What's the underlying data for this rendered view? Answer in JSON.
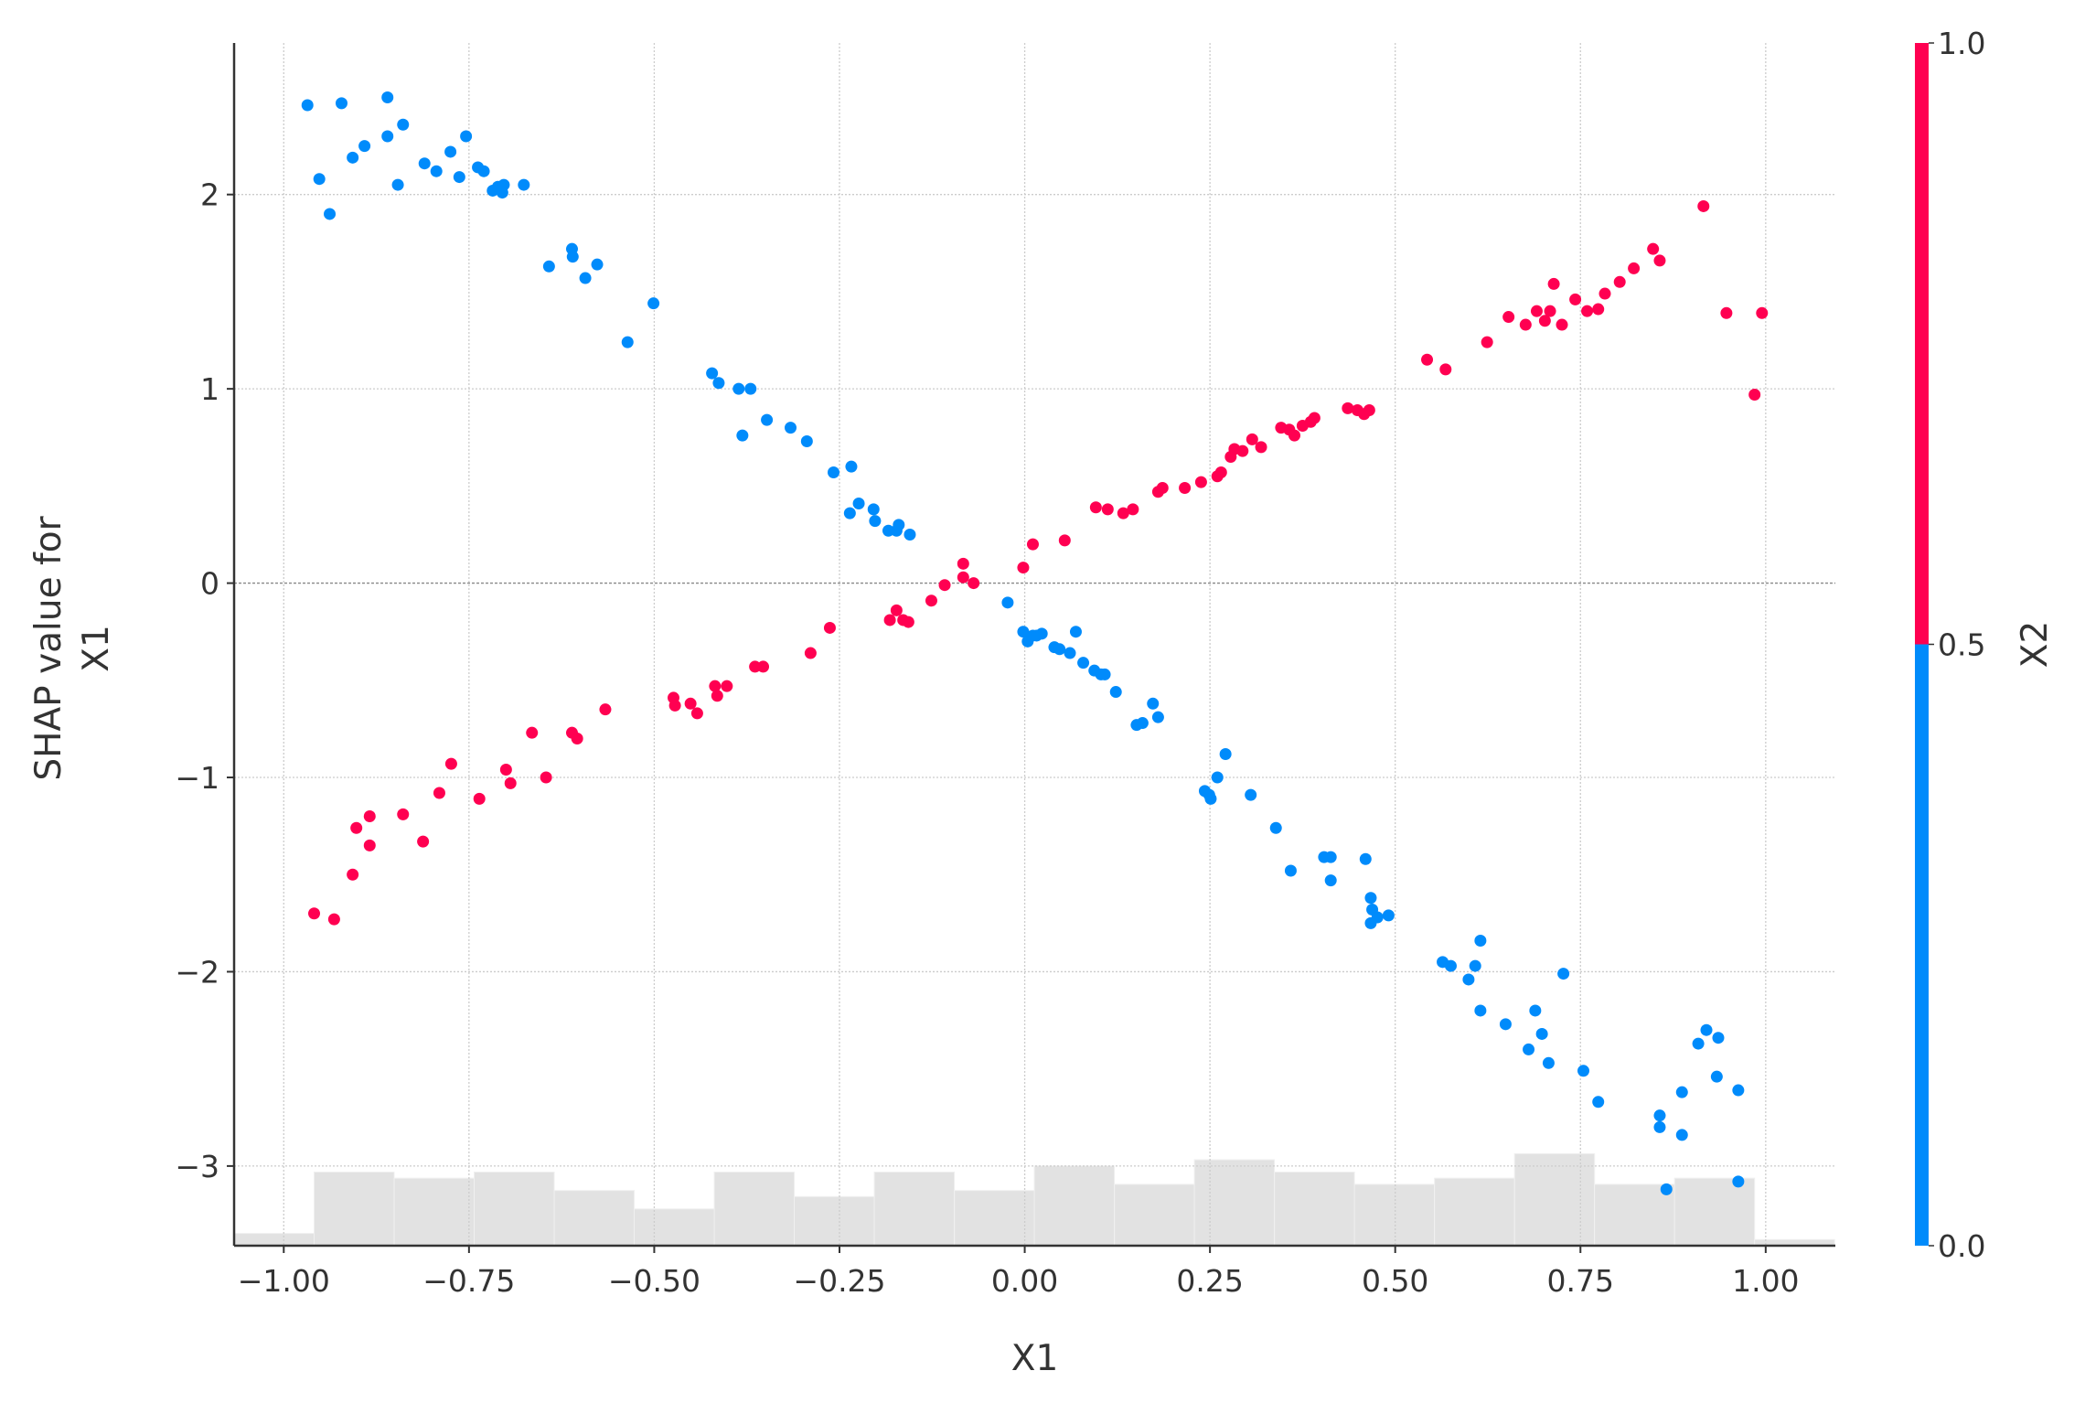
{
  "chart_data": {
    "type": "scatter",
    "xlabel": "X1",
    "ylabel": [
      "SHAP value for",
      "X1"
    ],
    "xlim": [
      -1.067,
      1.094
    ],
    "ylim": [
      -3.41,
      2.78
    ],
    "xticks": [
      {
        "value": -1,
        "label": "−1.00"
      },
      {
        "value": -0.75,
        "label": "−0.75"
      },
      {
        "value": -0.5,
        "label": "−0.50"
      },
      {
        "value": -0.25,
        "label": "−0.25"
      },
      {
        "value": 0,
        "label": "0.00"
      },
      {
        "value": 0.25,
        "label": "0.25"
      },
      {
        "value": 0.5,
        "label": "0.50"
      },
      {
        "value": 0.75,
        "label": "0.75"
      },
      {
        "value": 1,
        "label": "1.00"
      }
    ],
    "yticks": [
      {
        "value": -3,
        "label": "−3"
      },
      {
        "value": -2,
        "label": "−2"
      },
      {
        "value": -1,
        "label": "−1"
      },
      0,
      1,
      2
    ],
    "grid": true,
    "series": [
      {
        "color": "#008bfb",
        "x": [
          -0.968,
          -0.952,
          -0.938,
          -0.922,
          -0.907,
          -0.891,
          -0.86,
          -0.86,
          -0.846,
          -0.839,
          -0.81,
          -0.794,
          -0.775,
          -0.763,
          -0.754,
          -0.738,
          -0.73,
          -0.718,
          -0.711,
          -0.703,
          -0.705,
          -0.676,
          -0.642,
          -0.611,
          -0.61,
          -0.593,
          -0.577,
          -0.536,
          -0.501,
          -0.422,
          -0.413,
          -0.386,
          -0.37,
          -0.381,
          -0.348,
          -0.316,
          -0.294,
          -0.258,
          -0.234,
          -0.236,
          -0.224,
          -0.204,
          -0.202,
          -0.184,
          -0.173,
          -0.17,
          -0.155,
          -0.023,
          -0.002,
          0.004,
          0.011,
          0.016,
          0.023,
          0.04,
          0.047,
          0.061,
          0.069,
          0.079,
          0.094,
          0.103,
          0.108,
          0.123,
          0.151,
          0.159,
          0.173,
          0.18,
          0.243,
          0.249,
          0.251,
          0.26,
          0.271,
          0.305,
          0.339,
          0.359,
          0.404,
          0.413,
          0.413,
          0.46,
          0.467,
          0.469,
          0.467,
          0.476,
          0.491,
          0.564,
          0.575,
          0.599,
          0.608,
          0.615,
          0.615,
          0.649,
          0.68,
          0.689,
          0.698,
          0.707,
          0.727,
          0.754,
          0.774,
          0.857,
          0.857,
          0.866,
          0.887,
          0.887,
          0.909,
          0.92,
          0.936,
          0.934,
          0.963,
          0.963
        ],
        "values": [
          2.46,
          2.08,
          1.9,
          2.47,
          2.19,
          2.25,
          2.5,
          2.3,
          2.05,
          2.36,
          2.16,
          2.12,
          2.22,
          2.09,
          2.3,
          2.14,
          2.12,
          2.02,
          2.04,
          2.05,
          2.01,
          2.05,
          1.63,
          1.72,
          1.68,
          1.57,
          1.64,
          1.24,
          1.44,
          1.08,
          1.03,
          1.0,
          1.0,
          0.76,
          0.84,
          0.8,
          0.73,
          0.57,
          0.6,
          0.36,
          0.41,
          0.38,
          0.32,
          0.27,
          0.27,
          0.3,
          0.25,
          -0.1,
          -0.25,
          -0.3,
          -0.27,
          -0.27,
          -0.26,
          -0.33,
          -0.34,
          -0.36,
          -0.25,
          -0.41,
          -0.45,
          -0.47,
          -0.47,
          -0.56,
          -0.73,
          -0.72,
          -0.62,
          -0.69,
          -1.07,
          -1.09,
          -1.11,
          -1.0,
          -0.88,
          -1.09,
          -1.26,
          -1.48,
          -1.41,
          -1.41,
          -1.53,
          -1.42,
          -1.62,
          -1.68,
          -1.75,
          -1.72,
          -1.71,
          -1.95,
          -1.97,
          -2.04,
          -1.97,
          -1.84,
          -2.2,
          -2.27,
          -2.4,
          -2.2,
          -2.32,
          -2.47,
          -2.01,
          -2.51,
          -2.67,
          -2.74,
          -2.8,
          -3.12,
          -2.62,
          -2.84,
          -2.37,
          -2.3,
          -2.34,
          -2.54,
          -2.61,
          -3.08
        ]
      },
      {
        "color": "#ff0051",
        "x": [
          -0.959,
          -0.932,
          -0.907,
          -0.902,
          -0.884,
          -0.884,
          -0.839,
          -0.812,
          -0.79,
          -0.774,
          -0.736,
          -0.7,
          -0.694,
          -0.665,
          -0.646,
          -0.611,
          -0.604,
          -0.566,
          -0.474,
          -0.472,
          -0.451,
          -0.442,
          -0.418,
          -0.415,
          -0.402,
          -0.364,
          -0.353,
          -0.289,
          -0.263,
          -0.182,
          -0.173,
          -0.164,
          -0.157,
          -0.126,
          -0.108,
          -0.083,
          -0.083,
          -0.069,
          -0.002,
          0.011,
          0.054,
          0.096,
          0.112,
          0.133,
          0.146,
          0.18,
          0.186,
          0.216,
          0.238,
          0.26,
          0.265,
          0.278,
          0.283,
          0.294,
          0.307,
          0.319,
          0.346,
          0.357,
          0.364,
          0.375,
          0.386,
          0.391,
          0.436,
          0.449,
          0.458,
          0.465,
          0.543,
          0.568,
          0.624,
          0.653,
          0.676,
          0.691,
          0.702,
          0.709,
          0.725,
          0.714,
          0.743,
          0.759,
          0.774,
          0.783,
          0.803,
          0.822,
          0.848,
          0.857,
          0.916,
          0.947,
          0.985,
          0.995
        ],
        "values": [
          -1.7,
          -1.73,
          -1.5,
          -1.26,
          -1.2,
          -1.35,
          -1.19,
          -1.33,
          -1.08,
          -0.93,
          -1.11,
          -0.96,
          -1.03,
          -0.77,
          -1.0,
          -0.77,
          -0.8,
          -0.65,
          -0.59,
          -0.63,
          -0.62,
          -0.67,
          -0.53,
          -0.58,
          -0.53,
          -0.43,
          -0.43,
          -0.36,
          -0.23,
          -0.19,
          -0.14,
          -0.19,
          -0.2,
          -0.09,
          -0.01,
          0.1,
          0.03,
          0.0,
          0.08,
          0.2,
          0.22,
          0.39,
          0.38,
          0.36,
          0.38,
          0.47,
          0.49,
          0.49,
          0.52,
          0.55,
          0.57,
          0.65,
          0.69,
          0.68,
          0.74,
          0.7,
          0.8,
          0.79,
          0.76,
          0.81,
          0.83,
          0.85,
          0.9,
          0.89,
          0.87,
          0.89,
          1.15,
          1.1,
          1.24,
          1.37,
          1.33,
          1.4,
          1.35,
          1.4,
          1.33,
          1.54,
          1.46,
          1.4,
          1.41,
          1.49,
          1.55,
          1.62,
          1.72,
          1.66,
          1.94,
          1.39,
          0.97,
          1.39
        ]
      }
    ],
    "histogram": {
      "color": "#e2e2e2",
      "bins": [
        -1.067,
        -0.959,
        -0.851,
        -0.743,
        -0.635,
        -0.527,
        -0.419,
        -0.311,
        -0.203,
        -0.095,
        0.013,
        0.121,
        0.229,
        0.337,
        0.445,
        0.553,
        0.661,
        0.769,
        0.877,
        0.985,
        1.093
      ],
      "counts": [
        2,
        12,
        11,
        12,
        9,
        6,
        12,
        8,
        12,
        9,
        13,
        10,
        14,
        12,
        10,
        11,
        15,
        10,
        11,
        1
      ],
      "ylim": [
        0,
        196
      ]
    },
    "colorbar": {
      "label": "X2",
      "lim": [
        0,
        1
      ],
      "ticks": [
        {
          "value": 0,
          "label": "0.0"
        },
        {
          "value": 0.5,
          "label": "0.5"
        },
        {
          "value": 1,
          "label": "1.0"
        }
      ],
      "segments": [
        {
          "from": 0,
          "to": 0.5,
          "color": "#008bfb"
        },
        {
          "from": 0.5,
          "to": 1,
          "color": "#ff0051"
        }
      ]
    }
  }
}
